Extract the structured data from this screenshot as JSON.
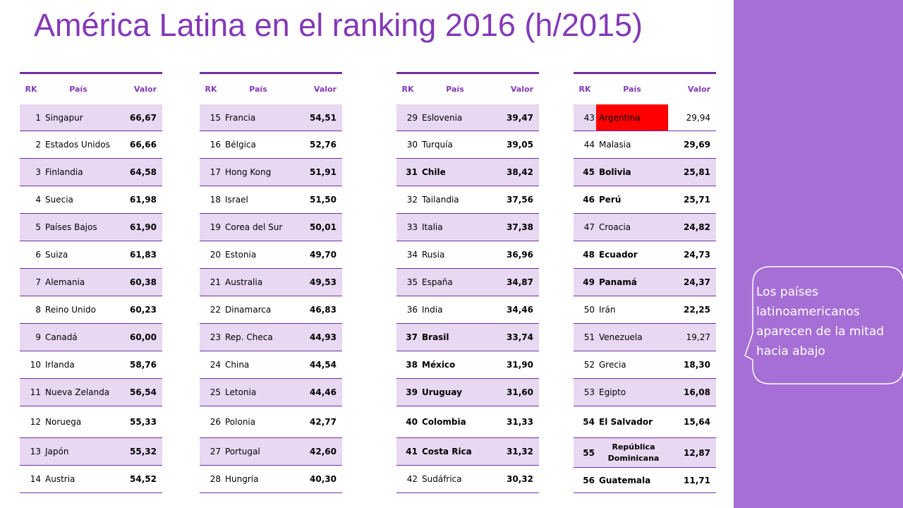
{
  "title": "América Latina en el ranking 2016  (h/2015)",
  "callout": {
    "text": "Los países latinoamericanos aparecen de la mitad hacia abajo"
  },
  "colors": {
    "title": "#8339b6",
    "side_panel": "#a56fd5",
    "row_shading": "#e8d8f2",
    "table_rule": "#7030a0",
    "argentina_highlight": "#ff0000"
  },
  "headers": {
    "rk": "RK",
    "pais": "País",
    "valor": "Valor"
  },
  "tables": [
    {
      "rows": [
        {
          "rk": "1",
          "pais": "Singapur",
          "valor": "66,67",
          "bold": false
        },
        {
          "rk": "2",
          "pais": "Estados Unidos",
          "valor": "66,66",
          "bold": false
        },
        {
          "rk": "3",
          "pais": "Finlandia",
          "valor": "64,58",
          "bold": false
        },
        {
          "rk": "4",
          "pais": "Suecia",
          "valor": "61,98",
          "bold": false
        },
        {
          "rk": "5",
          "pais": "Países Bajos",
          "valor": "61,90",
          "bold": false
        },
        {
          "rk": "6",
          "pais": "Suiza",
          "valor": "61,83",
          "bold": false
        },
        {
          "rk": "7",
          "pais": "Alemania",
          "valor": "60,38",
          "bold": false
        },
        {
          "rk": "8",
          "pais": "Reino Unido",
          "valor": "60,23",
          "bold": false
        },
        {
          "rk": "9",
          "pais": "Canadá",
          "valor": "60,00",
          "bold": false
        },
        {
          "rk": "10",
          "pais": "Irlanda",
          "valor": "58,76",
          "bold": false
        },
        {
          "rk": "11",
          "pais": "Nueva Zelanda",
          "valor": "56,54",
          "bold": false
        },
        {
          "rk": "12",
          "pais": "Noruega",
          "valor": "55,33",
          "bold": false
        },
        {
          "rk": "13",
          "pais": "Japón",
          "valor": "55,32",
          "bold": false
        },
        {
          "rk": "14",
          "pais": "Austria",
          "valor": "54,52",
          "bold": false
        }
      ]
    },
    {
      "rows": [
        {
          "rk": "15",
          "pais": "Francia",
          "valor": "54,51",
          "bold": false
        },
        {
          "rk": "16",
          "pais": "Bélgica",
          "valor": "52,76",
          "bold": false
        },
        {
          "rk": "17",
          "pais": "Hong Kong",
          "valor": "51,91",
          "bold": false
        },
        {
          "rk": "18",
          "pais": "Israel",
          "valor": "51,50",
          "bold": false
        },
        {
          "rk": "19",
          "pais": "Corea del Sur",
          "valor": "50,01",
          "bold": false
        },
        {
          "rk": "20",
          "pais": "Estonia",
          "valor": "49,70",
          "bold": false
        },
        {
          "rk": "21",
          "pais": "Australia",
          "valor": "49,53",
          "bold": false
        },
        {
          "rk": "22",
          "pais": "Dinamarca",
          "valor": "46,83",
          "bold": false
        },
        {
          "rk": "23",
          "pais": "Rep. Checa",
          "valor": "44,93",
          "bold": false
        },
        {
          "rk": "24",
          "pais": "China",
          "valor": "44,54",
          "bold": false
        },
        {
          "rk": "25",
          "pais": "Letonia",
          "valor": "44,46",
          "bold": false
        },
        {
          "rk": "26",
          "pais": "Polonia",
          "valor": "42,77",
          "bold": false
        },
        {
          "rk": "27",
          "pais": "Portugal",
          "valor": "42,60",
          "bold": false
        },
        {
          "rk": "28",
          "pais": "Hungría",
          "valor": "40,30",
          "bold": false
        }
      ]
    },
    {
      "rows": [
        {
          "rk": "29",
          "pais": "Eslovenia",
          "valor": "39,47",
          "bold": false
        },
        {
          "rk": "30",
          "pais": "Turquía",
          "valor": "39,05",
          "bold": false
        },
        {
          "rk": "31",
          "pais": "Chile",
          "valor": "38,42",
          "bold": true
        },
        {
          "rk": "32",
          "pais": "Tailandia",
          "valor": "37,56",
          "bold": false
        },
        {
          "rk": "33",
          "pais": "Italia",
          "valor": "37,38",
          "bold": false
        },
        {
          "rk": "34",
          "pais": "Rusia",
          "valor": "36,96",
          "bold": false
        },
        {
          "rk": "35",
          "pais": "España",
          "valor": "34,87",
          "bold": false
        },
        {
          "rk": "36",
          "pais": "India",
          "valor": "34,46",
          "bold": false
        },
        {
          "rk": "37",
          "pais": "Brasil",
          "valor": "33,74",
          "bold": true
        },
        {
          "rk": "38",
          "pais": "México",
          "valor": "31,90",
          "bold": true
        },
        {
          "rk": "39",
          "pais": "Uruguay",
          "valor": "31,60",
          "bold": true
        },
        {
          "rk": "40",
          "pais": "Colombia",
          "valor": "31,33",
          "bold": true
        },
        {
          "rk": "41",
          "pais": "Costa Rica",
          "valor": "31,32",
          "bold": true
        },
        {
          "rk": "42",
          "pais": "Sudáfrica",
          "valor": "30,32",
          "bold": false
        }
      ]
    },
    {
      "rows": [
        {
          "rk": "43",
          "pais": "Argentina",
          "valor": "29,94",
          "bold": false,
          "highlight": true
        },
        {
          "rk": "44",
          "pais": "Malasia",
          "valor": "29,69",
          "bold": false
        },
        {
          "rk": "45",
          "pais": "Bolivia",
          "valor": "25,81",
          "bold": true
        },
        {
          "rk": "46",
          "pais": "Perú",
          "valor": "25,71",
          "bold": true
        },
        {
          "rk": "47",
          "pais": "Croacia",
          "valor": "24,82",
          "bold": false
        },
        {
          "rk": "48",
          "pais": "Ecuador",
          "valor": "24,73",
          "bold": true
        },
        {
          "rk": "49",
          "pais": "Panamá",
          "valor": "24,37",
          "bold": true
        },
        {
          "rk": "50",
          "pais": "Irán",
          "valor": "22,25",
          "bold": false
        },
        {
          "rk": "51",
          "pais": "Venezuela",
          "valor": "19,27",
          "bold": false,
          "plain_value": true
        },
        {
          "rk": "52",
          "pais": "Grecia",
          "valor": "18,30",
          "bold": false
        },
        {
          "rk": "53",
          "pais": "Egipto",
          "valor": "16,08",
          "bold": false
        },
        {
          "rk": "54",
          "pais": "El Salvador",
          "valor": "15,64",
          "bold": true
        },
        {
          "rk": "55",
          "pais": "República Dominicana",
          "valor": "12,87",
          "bold": true
        },
        {
          "rk": "56",
          "pais": "Guatemala",
          "valor": "11,71",
          "bold": true
        }
      ]
    }
  ]
}
